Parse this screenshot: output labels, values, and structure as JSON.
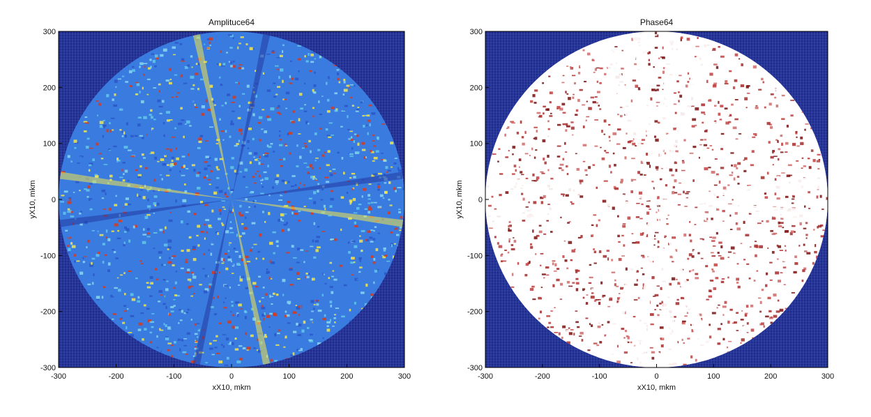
{
  "chart_data": [
    {
      "type": "heatmap",
      "title": "Amplituce64",
      "xlabel": "xX10, mkm",
      "ylabel": "yX10, mkm",
      "xlim": [
        -300,
        300
      ],
      "ylim": [
        -300,
        300
      ],
      "xticks": [
        -300,
        -200,
        -100,
        0,
        100,
        200,
        300
      ],
      "yticks": [
        300,
        200,
        100,
        0,
        -100,
        -200,
        -300
      ],
      "xtick_labels": [
        "-300",
        "-200",
        "-100",
        "0",
        "100",
        "200",
        "300"
      ],
      "ytick_labels": [
        "300",
        "200",
        "100",
        "0",
        "-100",
        "-200",
        "-300"
      ],
      "aperture_radius": 300,
      "colormap": "jet",
      "colors": {
        "background": "#1f2a8c",
        "grid": "#5a7fd6",
        "fill_low": "#3a7be0",
        "fill_mid": "#62c8e8",
        "fill_hi": "#f2e64a",
        "hot": "#d83a1c"
      }
    },
    {
      "type": "heatmap",
      "title": "Phase64",
      "xlabel": "xX10, mkm",
      "ylabel": "yX10, mkm",
      "xlim": [
        -300,
        300
      ],
      "ylim": [
        -300,
        300
      ],
      "xticks": [
        -300,
        -200,
        -100,
        0,
        100,
        200,
        300
      ],
      "yticks": [
        300,
        200,
        100,
        0,
        -100,
        -200,
        -300
      ],
      "xtick_labels": [
        "-300",
        "-200",
        "-100",
        "0",
        "100",
        "200",
        "300"
      ],
      "ytick_labels": [
        "300",
        "200",
        "100",
        "0",
        "-100",
        "-200",
        "-300"
      ],
      "aperture_radius": 300,
      "colormap": "jet",
      "colors": {
        "background": "#1f2a8c",
        "grid": "#5a7fd6",
        "fill_low": "#ffffff",
        "fill_mid": "#a82a2a",
        "fill_hi": "#ffffff",
        "hot": "#7a1010"
      }
    }
  ]
}
